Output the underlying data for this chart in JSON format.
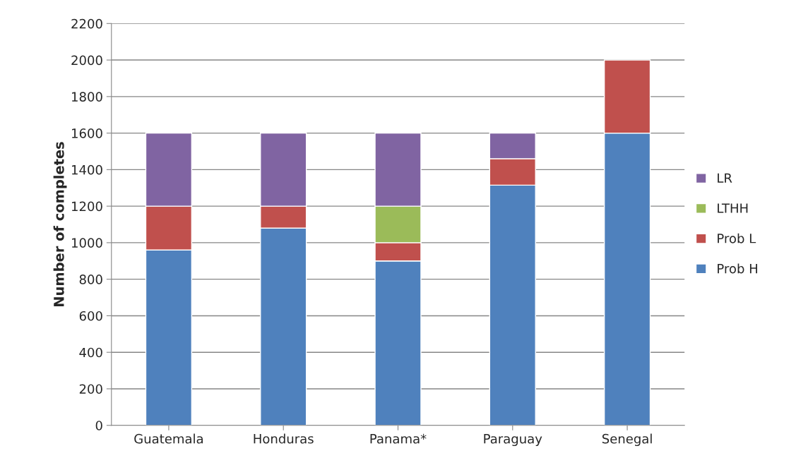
{
  "chart_data": {
    "type": "bar",
    "stacked": true,
    "ylabel": "Number of completes",
    "categories": [
      "Guatemala",
      "Honduras",
      "Panama*",
      "Paraguay",
      "Senegal"
    ],
    "series": [
      {
        "name": "Prob H",
        "color": "#4f81bd",
        "values": [
          960,
          1080,
          900,
          1315,
          1600
        ]
      },
      {
        "name": "Prob L",
        "color": "#c0504d",
        "values": [
          240,
          120,
          100,
          145,
          400
        ]
      },
      {
        "name": "LTHH",
        "color": "#9bbb59",
        "values": [
          null,
          null,
          200,
          null,
          null
        ]
      },
      {
        "name": "LR",
        "color": "#8064a2",
        "values": [
          400,
          400,
          400,
          140,
          null
        ]
      }
    ],
    "ylim": [
      0,
      2200
    ],
    "yticks": [
      0,
      200,
      400,
      600,
      800,
      1000,
      1200,
      1400,
      1600,
      1800,
      2000,
      2200
    ],
    "grid": "y",
    "legend": "right"
  }
}
